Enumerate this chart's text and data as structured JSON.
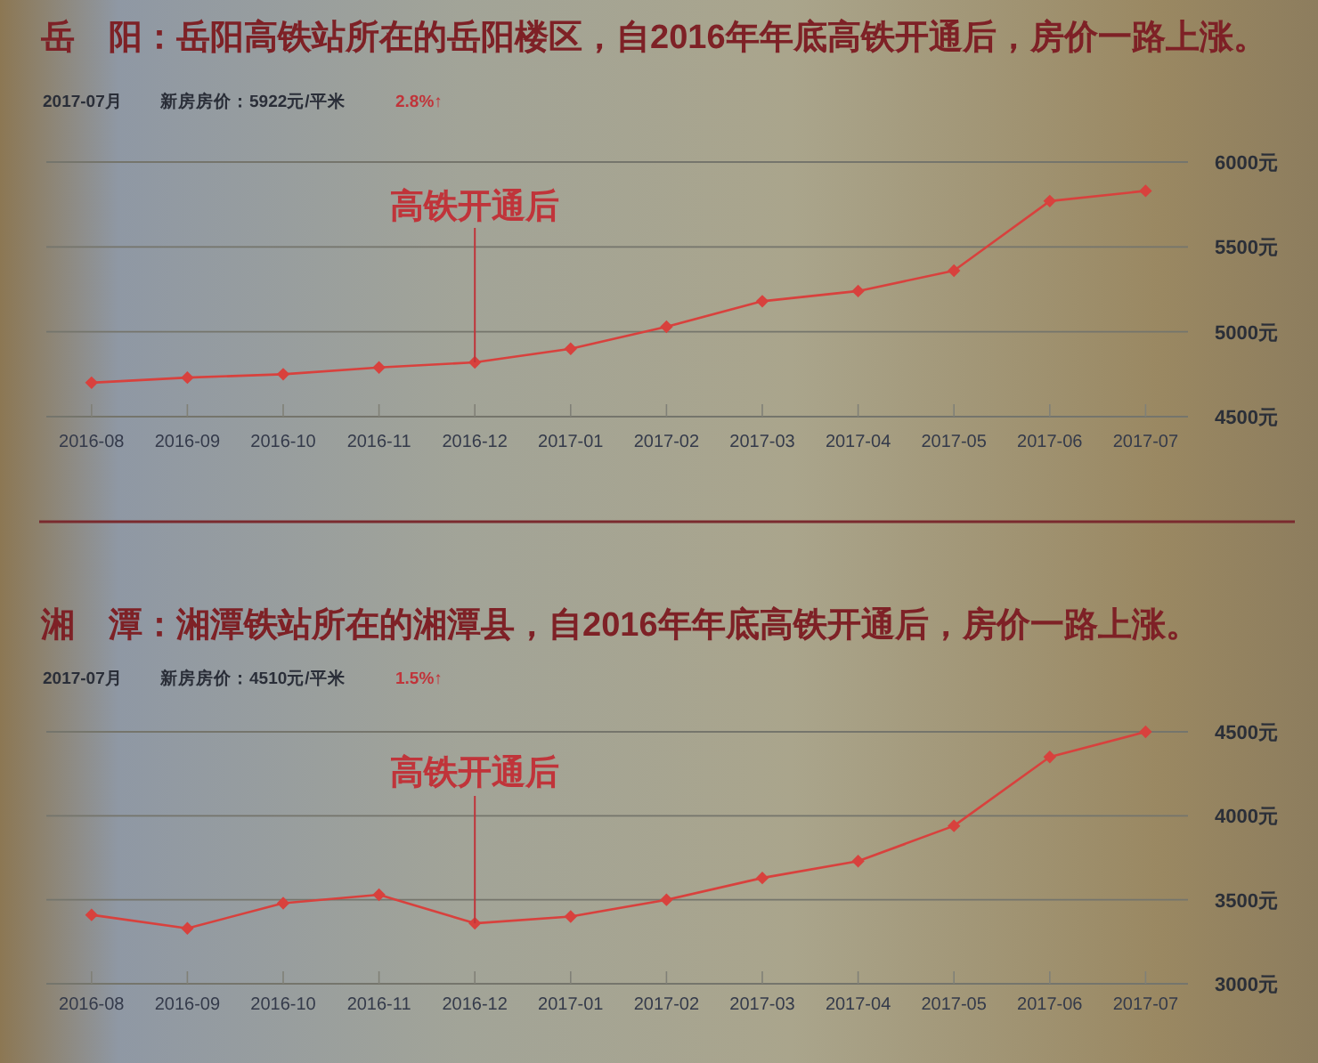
{
  "chart_data": [
    {
      "type": "line",
      "title": "岳　阳：岳阳高铁站所在的岳阳楼区，自2016年年底高铁开通后，房价一路上涨。",
      "subtitle": "2017-07月",
      "annotations": [
        "新房房价：5922元/平米",
        "2.8%↑",
        {
          "text": "高铁开通后",
          "x": "2016-12",
          "y": 4820
        }
      ],
      "categories": [
        "2016-08",
        "2016-09",
        "2016-10",
        "2016-11",
        "2016-12",
        "2017-01",
        "2017-02",
        "2017-03",
        "2017-04",
        "2017-05",
        "2017-06",
        "2017-07"
      ],
      "series": [
        {
          "color": "#d8413d",
          "values": [
            4700,
            4730,
            4750,
            4790,
            4820,
            4900,
            5030,
            5180,
            5240,
            5360,
            5770,
            5830
          ]
        }
      ],
      "ylim": [
        4500,
        6000
      ],
      "yticks": [
        {
          "value": 4500,
          "label": "4500元"
        },
        {
          "value": 5000,
          "label": "5000元"
        },
        {
          "value": 5500,
          "label": "5500元"
        },
        {
          "value": 6000,
          "label": "6000元"
        }
      ],
      "grid": "y",
      "marker": "diamond",
      "line_style": "solid"
    },
    {
      "type": "line",
      "title": "湘　潭：湘潭铁站所在的湘潭县，自2016年年底高铁开通后，房价一路上涨。",
      "subtitle": "2017-07月",
      "annotations": [
        "新房房价：4510元/平米",
        "1.5%↑",
        {
          "text": "高铁开通后",
          "x": "2016-12",
          "y": 3360
        }
      ],
      "categories": [
        "2016-08",
        "2016-09",
        "2016-10",
        "2016-11",
        "2016-12",
        "2017-01",
        "2017-02",
        "2017-03",
        "2017-04",
        "2017-05",
        "2017-06",
        "2017-07"
      ],
      "series": [
        {
          "color": "#d8413d",
          "values": [
            3410,
            3330,
            3480,
            3530,
            3360,
            3400,
            3500,
            3630,
            3730,
            3940,
            4350,
            4500
          ]
        }
      ],
      "ylim": [
        3000,
        4500
      ],
      "yticks": [
        {
          "value": 3000,
          "label": "3000元"
        },
        {
          "value": 3500,
          "label": "3500元"
        },
        {
          "value": 4000,
          "label": "4000元"
        },
        {
          "value": 4500,
          "label": "4500元"
        }
      ],
      "grid": "y",
      "marker": "diamond",
      "line_style": "solid"
    }
  ]
}
